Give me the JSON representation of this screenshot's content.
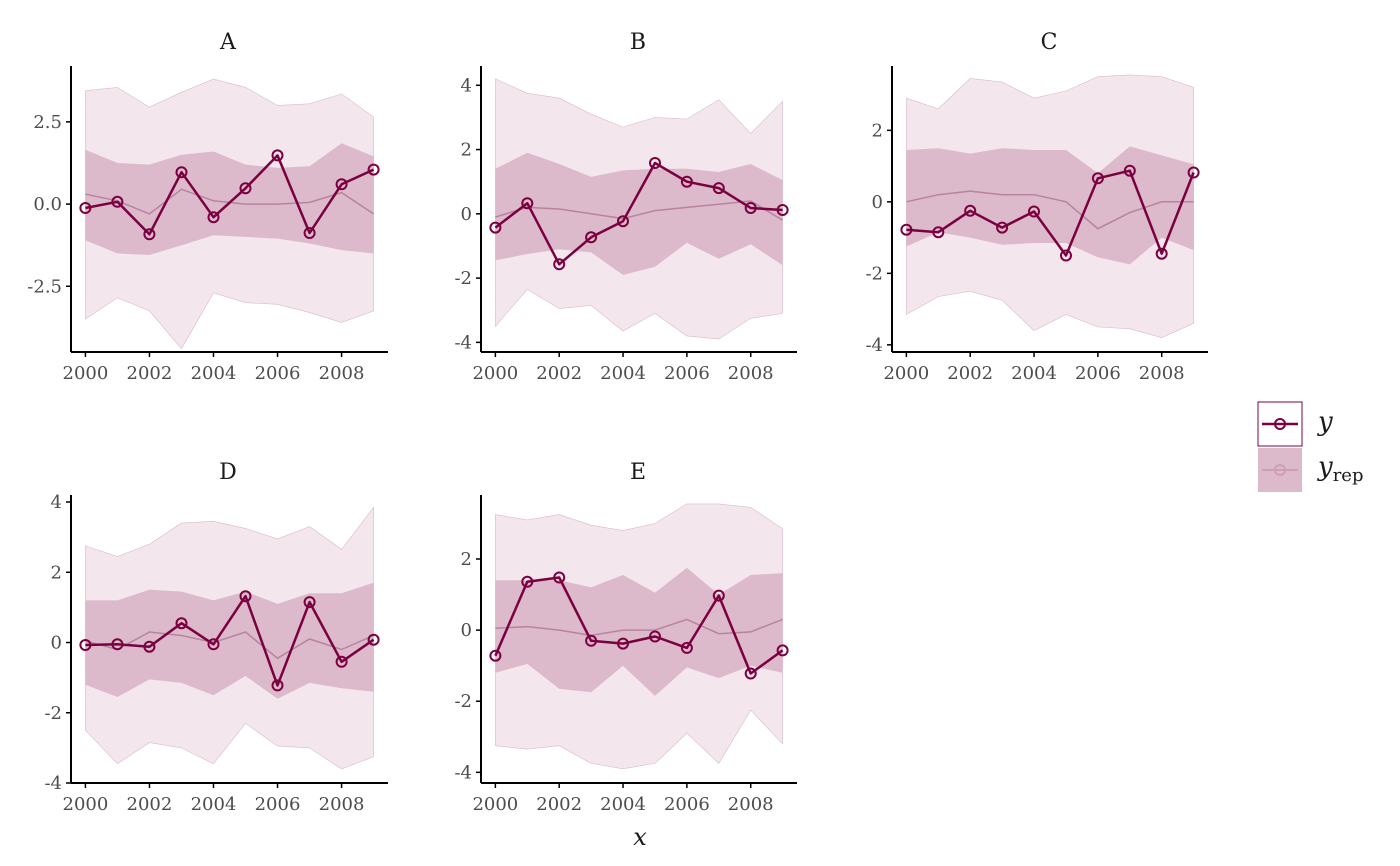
{
  "colors": {
    "y_line": "#7b0040",
    "outer_band": "#f3e6ed",
    "inner_band": "#dcb9cb",
    "median_line": "#b7849f",
    "legend_rep_point": "#cc9fb5"
  },
  "chart_data": {
    "type": "line",
    "xlabel": "x",
    "x_ticks": [
      2000,
      2002,
      2004,
      2006,
      2008
    ],
    "legend": {
      "position": "right",
      "items": [
        {
          "key": "y",
          "label": "y",
          "subscript": ""
        },
        {
          "key": "yrep",
          "label": "y",
          "subscript": "rep"
        }
      ]
    },
    "panels": [
      {
        "title": "A",
        "ylim": [
          -4.5,
          4.2
        ],
        "y_ticks": [
          -2.5,
          0,
          2.5
        ],
        "y_tick_labels": [
          "-2.5",
          "0.0",
          "2.5"
        ],
        "x": [
          2000,
          2001,
          2002,
          2003,
          2004,
          2005,
          2006,
          2007,
          2008,
          2009
        ],
        "y": [
          -0.12,
          0.07,
          -0.92,
          0.97,
          -0.4,
          0.48,
          1.48,
          -0.88,
          0.6,
          1.05
        ],
        "median": [
          0.3,
          0.1,
          -0.3,
          0.45,
          0.1,
          0.0,
          0.0,
          0.05,
          0.35,
          -0.3
        ],
        "inner_low": [
          -1.1,
          -1.5,
          -1.55,
          -1.25,
          -0.95,
          -1.0,
          -1.05,
          -1.2,
          -1.4,
          -1.5
        ],
        "inner_high": [
          1.65,
          1.25,
          1.2,
          1.5,
          1.6,
          1.2,
          1.1,
          1.15,
          1.85,
          1.45
        ],
        "outer_low": [
          -3.5,
          -2.85,
          -3.25,
          -4.4,
          -2.7,
          -3.0,
          -3.05,
          -3.3,
          -3.6,
          -3.25
        ],
        "outer_high": [
          3.45,
          3.55,
          2.95,
          3.4,
          3.8,
          3.55,
          3.0,
          3.05,
          3.35,
          2.65
        ]
      },
      {
        "title": "B",
        "ylim": [
          -4.3,
          4.6
        ],
        "y_ticks": [
          -4,
          -2,
          0,
          2,
          4
        ],
        "y_tick_labels": [
          "-4",
          "-2",
          "0",
          "2",
          "4"
        ],
        "x": [
          2000,
          2001,
          2002,
          2003,
          2004,
          2005,
          2006,
          2007,
          2008,
          2009
        ],
        "y": [
          -0.43,
          0.33,
          -1.57,
          -0.73,
          -0.23,
          1.58,
          1.0,
          0.8,
          0.18,
          0.12
        ],
        "median": [
          -0.1,
          0.2,
          0.15,
          0.0,
          -0.15,
          0.1,
          0.2,
          0.3,
          0.4,
          -0.2
        ],
        "inner_low": [
          -1.45,
          -1.25,
          -1.1,
          -1.2,
          -1.9,
          -1.65,
          -0.9,
          -1.4,
          -0.95,
          -1.6
        ],
        "inner_high": [
          1.4,
          1.9,
          1.55,
          1.15,
          1.35,
          1.4,
          1.4,
          1.3,
          1.55,
          1.05
        ],
        "outer_low": [
          -3.5,
          -2.35,
          -2.95,
          -2.85,
          -3.65,
          -3.1,
          -3.8,
          -3.9,
          -3.25,
          -3.1
        ],
        "outer_high": [
          4.2,
          3.75,
          3.6,
          3.1,
          2.7,
          3.0,
          2.95,
          3.55,
          2.5,
          3.5
        ]
      },
      {
        "title": "C",
        "ylim": [
          -4.2,
          3.8
        ],
        "y_ticks": [
          -4,
          -2,
          0,
          2
        ],
        "y_tick_labels": [
          "-4",
          "-2",
          "0",
          "2"
        ],
        "x": [
          2000,
          2001,
          2002,
          2003,
          2004,
          2005,
          2006,
          2007,
          2008,
          2009
        ],
        "y": [
          -0.78,
          -0.85,
          -0.25,
          -0.72,
          -0.27,
          -1.5,
          0.66,
          0.87,
          -1.45,
          0.82
        ],
        "median": [
          0.0,
          0.2,
          0.3,
          0.2,
          0.2,
          0.0,
          -0.75,
          -0.3,
          0.0,
          0.0
        ],
        "inner_low": [
          -1.25,
          -0.85,
          -1.0,
          -1.2,
          -1.15,
          -1.15,
          -1.55,
          -1.75,
          -1.0,
          -1.35
        ],
        "inner_high": [
          1.45,
          1.5,
          1.35,
          1.5,
          1.45,
          1.45,
          0.8,
          1.55,
          1.3,
          1.05
        ],
        "outer_low": [
          -3.15,
          -2.65,
          -2.5,
          -2.75,
          -3.6,
          -3.15,
          -3.5,
          -3.55,
          -3.8,
          -3.4
        ],
        "outer_high": [
          2.9,
          2.6,
          3.45,
          3.35,
          2.9,
          3.1,
          3.5,
          3.55,
          3.5,
          3.2
        ]
      },
      {
        "title": "D",
        "ylim": [
          -4.0,
          4.2
        ],
        "y_ticks": [
          -4,
          -2,
          0,
          2,
          4
        ],
        "y_tick_labels": [
          "-4",
          "-2",
          "0",
          "2",
          "4"
        ],
        "x": [
          2000,
          2001,
          2002,
          2003,
          2004,
          2005,
          2006,
          2007,
          2008,
          2009
        ],
        "y": [
          -0.07,
          -0.05,
          -0.12,
          0.55,
          -0.05,
          1.32,
          -1.22,
          1.15,
          -0.55,
          0.08
        ],
        "median": [
          0.05,
          -0.2,
          0.3,
          0.2,
          0.0,
          0.3,
          -0.45,
          0.1,
          -0.2,
          0.2
        ],
        "inner_low": [
          -1.2,
          -1.55,
          -1.05,
          -1.15,
          -1.5,
          -0.95,
          -1.6,
          -1.15,
          -1.3,
          -1.4
        ],
        "inner_high": [
          1.2,
          1.2,
          1.5,
          1.45,
          1.2,
          1.45,
          1.1,
          1.4,
          1.4,
          1.7
        ],
        "outer_low": [
          -2.5,
          -3.45,
          -2.85,
          -3.0,
          -3.45,
          -2.3,
          -2.95,
          -3.0,
          -3.6,
          -3.25
        ],
        "outer_high": [
          2.75,
          2.45,
          2.8,
          3.4,
          3.45,
          3.25,
          2.95,
          3.3,
          2.65,
          3.85
        ]
      },
      {
        "title": "E",
        "ylim": [
          -4.3,
          3.8
        ],
        "y_ticks": [
          -4,
          -2,
          0,
          2
        ],
        "y_tick_labels": [
          "-4",
          "-2",
          "0",
          "2"
        ],
        "x": [
          2000,
          2001,
          2002,
          2003,
          2004,
          2005,
          2006,
          2007,
          2008,
          2009
        ],
        "y": [
          -0.72,
          1.36,
          1.48,
          -0.3,
          -0.38,
          -0.18,
          -0.5,
          0.97,
          -1.22,
          -0.57
        ],
        "median": [
          0.05,
          0.1,
          0.0,
          -0.15,
          0.0,
          0.0,
          0.3,
          -0.1,
          -0.05,
          0.3
        ],
        "inner_low": [
          -1.2,
          -0.95,
          -1.65,
          -1.75,
          -1.0,
          -1.85,
          -1.05,
          -1.35,
          -1.0,
          -1.2
        ],
        "inner_high": [
          1.4,
          1.4,
          1.4,
          1.2,
          1.55,
          1.05,
          1.75,
          1.0,
          1.55,
          1.6
        ],
        "outer_low": [
          -3.25,
          -3.35,
          -3.25,
          -3.75,
          -3.9,
          -3.75,
          -2.9,
          -3.75,
          -2.25,
          -3.2
        ],
        "outer_high": [
          3.25,
          3.1,
          3.25,
          2.95,
          2.8,
          3.0,
          3.55,
          3.55,
          3.45,
          2.85
        ]
      }
    ]
  }
}
